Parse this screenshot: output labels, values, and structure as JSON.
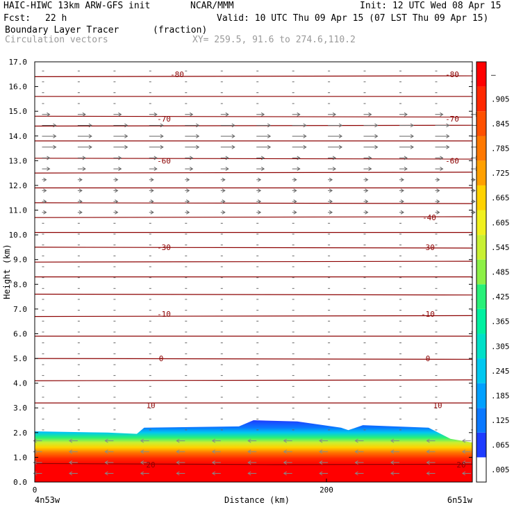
{
  "header": {
    "model": "HAIC-HIWC 13km ARW-GFS init",
    "org": "NCAR/MMM",
    "init": "Init: 12 UTC Wed 08 Apr 15",
    "fcst_label": "Fcst:",
    "fcst_value": "22 h",
    "valid": "Valid: 10 UTC Thu 09 Apr 15 (07 LST Thu 09 Apr 15)",
    "field": "Boundary Layer Tracer",
    "units": "(fraction)",
    "vectors": "Circulation vectors",
    "xy": "XY= 259.5, 91.6 to 274.6,110.2"
  },
  "chart_data": {
    "type": "heatmap",
    "xlabel": "Distance (km)",
    "ylabel": "Height (km)",
    "xlim": [
      0,
      300
    ],
    "ylim": [
      0.0,
      17.0
    ],
    "x_ticks": [
      {
        "v": 0,
        "label": "0"
      },
      {
        "v": 200,
        "label": "200"
      }
    ],
    "x_end_labels": {
      "left": "4n53w",
      "right": "6n51w"
    },
    "y_ticks": [
      "0.0",
      "1.0",
      "2.0",
      "3.0",
      "4.0",
      "5.0",
      "6.0",
      "7.0",
      "8.0",
      "9.0",
      "10.0",
      "11.0",
      "12.0",
      "13.0",
      "14.0",
      "15.0",
      "16.0",
      "17.0"
    ],
    "colorbar": {
      "labels": [
        ".005",
        ".065",
        ".125",
        ".185",
        ".245",
        ".305",
        ".365",
        ".425",
        ".485",
        ".545",
        ".605",
        ".665",
        ".725",
        ".785",
        ".845",
        ".905",
        "–"
      ],
      "colors": [
        "#ffffff",
        "#1e3cff",
        "#0a78ff",
        "#00a0ff",
        "#00c8f0",
        "#00e0c8",
        "#00f0a0",
        "#28f078",
        "#8cf046",
        "#c8f032",
        "#f0f01e",
        "#ffd200",
        "#ffa000",
        "#ff7800",
        "#ff5000",
        "#ff2800",
        "#ff0000"
      ]
    },
    "tracer_top_km": [
      {
        "x": 0,
        "h": 2.05
      },
      {
        "x": 50,
        "h": 2.0
      },
      {
        "x": 70,
        "h": 1.95
      },
      {
        "x": 75,
        "h": 2.2
      },
      {
        "x": 140,
        "h": 2.25
      },
      {
        "x": 150,
        "h": 2.5
      },
      {
        "x": 180,
        "h": 2.45
      },
      {
        "x": 210,
        "h": 2.2
      },
      {
        "x": 215,
        "h": 2.1
      },
      {
        "x": 225,
        "h": 2.3
      },
      {
        "x": 270,
        "h": 2.2
      },
      {
        "x": 285,
        "h": 1.75
      },
      {
        "x": 300,
        "h": 1.6
      }
    ],
    "temperature_contour_labels": [
      {
        "label": "-80",
        "height_km": 16.5
      },
      {
        "label": "-70",
        "height_km": 14.7
      },
      {
        "label": "-60",
        "height_km": 13.0
      },
      {
        "label": "-40",
        "height_km": 10.7
      },
      {
        "label": "-30",
        "height_km": 9.5
      },
      {
        "label": "-10",
        "height_km": 6.8
      },
      {
        "label": "0",
        "height_km": 5.0
      },
      {
        "label": "10",
        "height_km": 3.1
      },
      {
        "label": "20",
        "height_km": 0.7
      }
    ],
    "isotherm_heights_km": [
      16.4,
      15.6,
      14.8,
      14.4,
      13.8,
      13.1,
      12.5,
      11.9,
      11.3,
      10.7,
      10.1,
      9.5,
      8.9,
      8.3,
      7.6,
      6.7,
      5.9,
      5.0,
      4.1,
      3.2
    ]
  }
}
